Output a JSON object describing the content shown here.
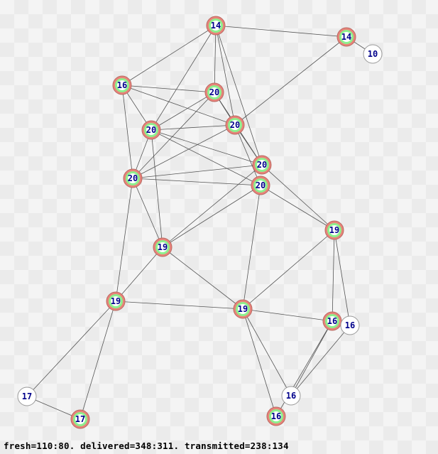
{
  "colors": {
    "edge": "#555555",
    "ring": "#e8837a",
    "inner": "#8ef08e",
    "center": "#ffffff",
    "label": "#00008b"
  },
  "nodes": [
    {
      "id": "A",
      "label": "14"
    },
    {
      "id": "B",
      "label": "14"
    },
    {
      "id": "C",
      "label": "10"
    },
    {
      "id": "D",
      "label": "16"
    },
    {
      "id": "E",
      "label": "20"
    },
    {
      "id": "F",
      "label": "20"
    },
    {
      "id": "G",
      "label": "20"
    },
    {
      "id": "H",
      "label": "20"
    },
    {
      "id": "I",
      "label": "20"
    },
    {
      "id": "J",
      "label": "20"
    },
    {
      "id": "K",
      "label": "19"
    },
    {
      "id": "L",
      "label": "19"
    },
    {
      "id": "M",
      "label": "19"
    },
    {
      "id": "N",
      "label": "19"
    },
    {
      "id": "O",
      "label": "16"
    },
    {
      "id": "P",
      "label": "16"
    },
    {
      "id": "Q",
      "label": "17"
    },
    {
      "id": "R",
      "label": "16"
    },
    {
      "id": "S",
      "label": "17"
    },
    {
      "id": "T",
      "label": "16"
    }
  ],
  "edges": [
    [
      "A",
      "B"
    ],
    [
      "A",
      "D"
    ],
    [
      "A",
      "G"
    ],
    [
      "A",
      "E"
    ],
    [
      "A",
      "F"
    ],
    [
      "A",
      "H"
    ],
    [
      "B",
      "C"
    ],
    [
      "B",
      "F"
    ],
    [
      "D",
      "E"
    ],
    [
      "D",
      "F"
    ],
    [
      "D",
      "G"
    ],
    [
      "D",
      "I"
    ],
    [
      "E",
      "G"
    ],
    [
      "E",
      "I"
    ],
    [
      "E",
      "F"
    ],
    [
      "E",
      "H"
    ],
    [
      "F",
      "G"
    ],
    [
      "F",
      "I"
    ],
    [
      "F",
      "H"
    ],
    [
      "F",
      "J"
    ],
    [
      "G",
      "I"
    ],
    [
      "G",
      "H"
    ],
    [
      "G",
      "J"
    ],
    [
      "G",
      "L"
    ],
    [
      "I",
      "H"
    ],
    [
      "I",
      "J"
    ],
    [
      "I",
      "L"
    ],
    [
      "I",
      "M"
    ],
    [
      "H",
      "L"
    ],
    [
      "H",
      "K"
    ],
    [
      "J",
      "L"
    ],
    [
      "J",
      "N"
    ],
    [
      "J",
      "K"
    ],
    [
      "K",
      "N"
    ],
    [
      "K",
      "O"
    ],
    [
      "K",
      "P"
    ],
    [
      "L",
      "M"
    ],
    [
      "L",
      "N"
    ],
    [
      "M",
      "N"
    ],
    [
      "M",
      "Q"
    ],
    [
      "M",
      "S"
    ],
    [
      "N",
      "O"
    ],
    [
      "N",
      "R"
    ],
    [
      "N",
      "T"
    ],
    [
      "O",
      "R"
    ],
    [
      "P",
      "R"
    ],
    [
      "O",
      "T"
    ],
    [
      "Q",
      "S"
    ]
  ],
  "status": "fresh=110:80. delivered=348:311. transmitted=238:134"
}
